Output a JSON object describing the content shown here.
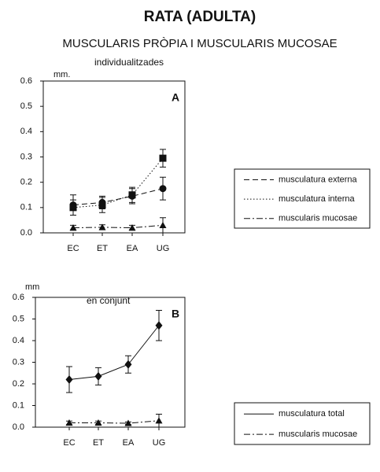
{
  "title": "RATA (ADULTA)",
  "subtitle": "MUSCULARIS PRÒPIA I MUSCULARIS MUCOSAE",
  "chart_data": [
    {
      "type": "line",
      "note": "individualitzades",
      "panel": "A",
      "ylabel": "mm.",
      "categories": [
        "EC",
        "ET",
        "EA",
        "UG"
      ],
      "ylim": [
        0,
        0.6
      ],
      "yticks": [
        {
          "value": 0,
          "label": "0.0"
        },
        0.1,
        0.2,
        0.3,
        0.4,
        0.5,
        0.6
      ],
      "legend": "right",
      "series": [
        {
          "name": "musculatura externa",
          "color": "#111111",
          "marker": "circle",
          "dash": "dashed",
          "values": [
            0.11,
            0.12,
            0.145,
            0.175
          ],
          "errors": [
            0.04,
            0.025,
            0.03,
            0.045
          ]
        },
        {
          "name": "musculatura interna",
          "color": "#111111",
          "marker": "square",
          "dash": "dotted",
          "values": [
            0.1,
            0.11,
            0.15,
            0.295
          ],
          "errors": [
            0.03,
            0.03,
            0.03,
            0.035
          ]
        },
        {
          "name": "muscularis mucosae",
          "color": "#111111",
          "marker": "triangle",
          "dash": "dashdot",
          "values": [
            0.02,
            0.022,
            0.02,
            0.03
          ],
          "errors": [
            0.01,
            0.01,
            0.01,
            0.03
          ]
        }
      ]
    },
    {
      "type": "line",
      "note": "en conjunt",
      "panel": "B",
      "ylabel": "mm",
      "categories": [
        "EC",
        "ET",
        "EA",
        "UG"
      ],
      "ylim": [
        0,
        0.6
      ],
      "yticks": [
        {
          "value": 0,
          "label": "0.0"
        },
        0.1,
        0.2,
        0.3,
        0.4,
        0.5,
        0.6
      ],
      "legend": "right",
      "series": [
        {
          "name": "musculatura total",
          "color": "#111111",
          "marker": "diamond",
          "dash": "solid",
          "values": [
            0.22,
            0.235,
            0.29,
            0.47
          ],
          "errors": [
            0.06,
            0.04,
            0.04,
            0.07
          ]
        },
        {
          "name": "muscularis mucosae",
          "color": "#111111",
          "marker": "triangle",
          "dash": "dashdot",
          "values": [
            0.02,
            0.02,
            0.018,
            0.03
          ],
          "errors": [
            0.008,
            0.008,
            0.006,
            0.03
          ]
        }
      ]
    }
  ]
}
